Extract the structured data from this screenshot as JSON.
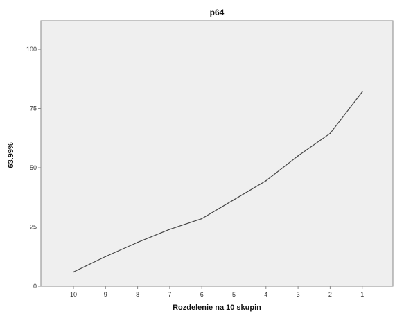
{
  "chart_data": {
    "type": "line",
    "title": "p64",
    "xlabel": "Rozdelenie na 10 skupin",
    "ylabel": "63.99%",
    "categories": [
      "10",
      "9",
      "8",
      "7",
      "6",
      "5",
      "4",
      "3",
      "2",
      "1"
    ],
    "values": [
      6,
      12.5,
      18.5,
      24,
      28.5,
      36.5,
      44.5,
      55,
      64.5,
      82
    ],
    "ylim": [
      0,
      112
    ],
    "yticks": [
      "0",
      "25",
      "50",
      "75",
      "100"
    ],
    "grid": false,
    "legend": "none",
    "colors": {
      "plot_background": "#efefef",
      "line": "#444444",
      "axis": "#888888"
    }
  }
}
